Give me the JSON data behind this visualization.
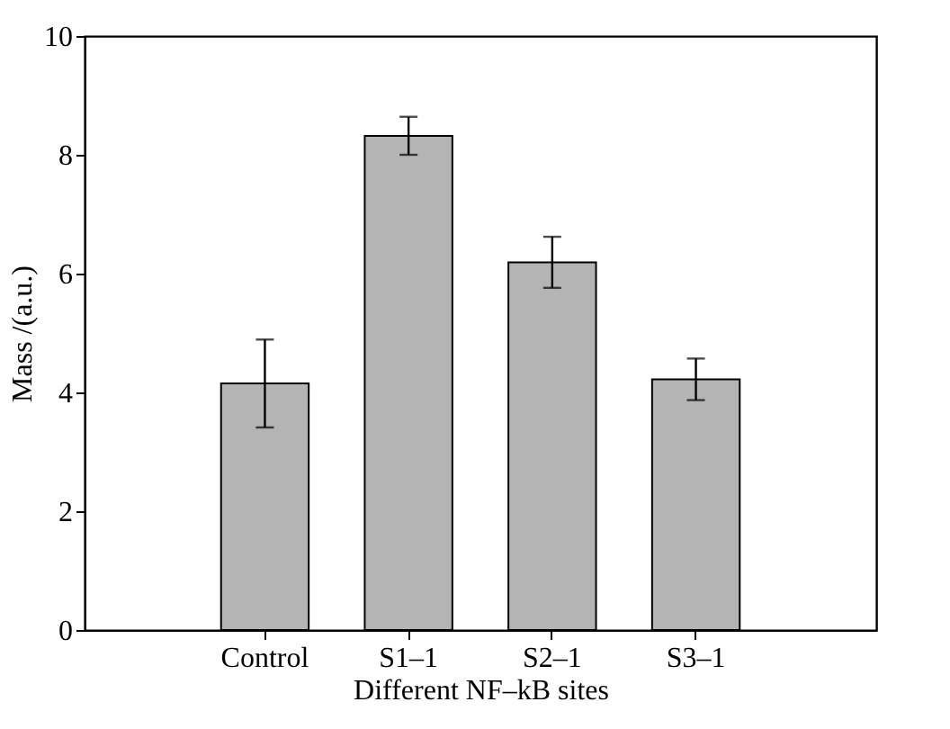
{
  "chart_data": {
    "type": "bar",
    "xlabel": "Different NF–kB sites",
    "ylabel": "Mass /(a.u.)",
    "categories": [
      "Control",
      "S1–1",
      "S2–1",
      "S3–1"
    ],
    "values": [
      4.15,
      8.32,
      6.19,
      4.22
    ],
    "errors": [
      0.74,
      0.32,
      0.43,
      0.35
    ],
    "color": "#b4b4b4",
    "ylim": [
      0,
      10
    ],
    "yticks": [
      0,
      2,
      4,
      6,
      8,
      10
    ],
    "grid": false
  }
}
